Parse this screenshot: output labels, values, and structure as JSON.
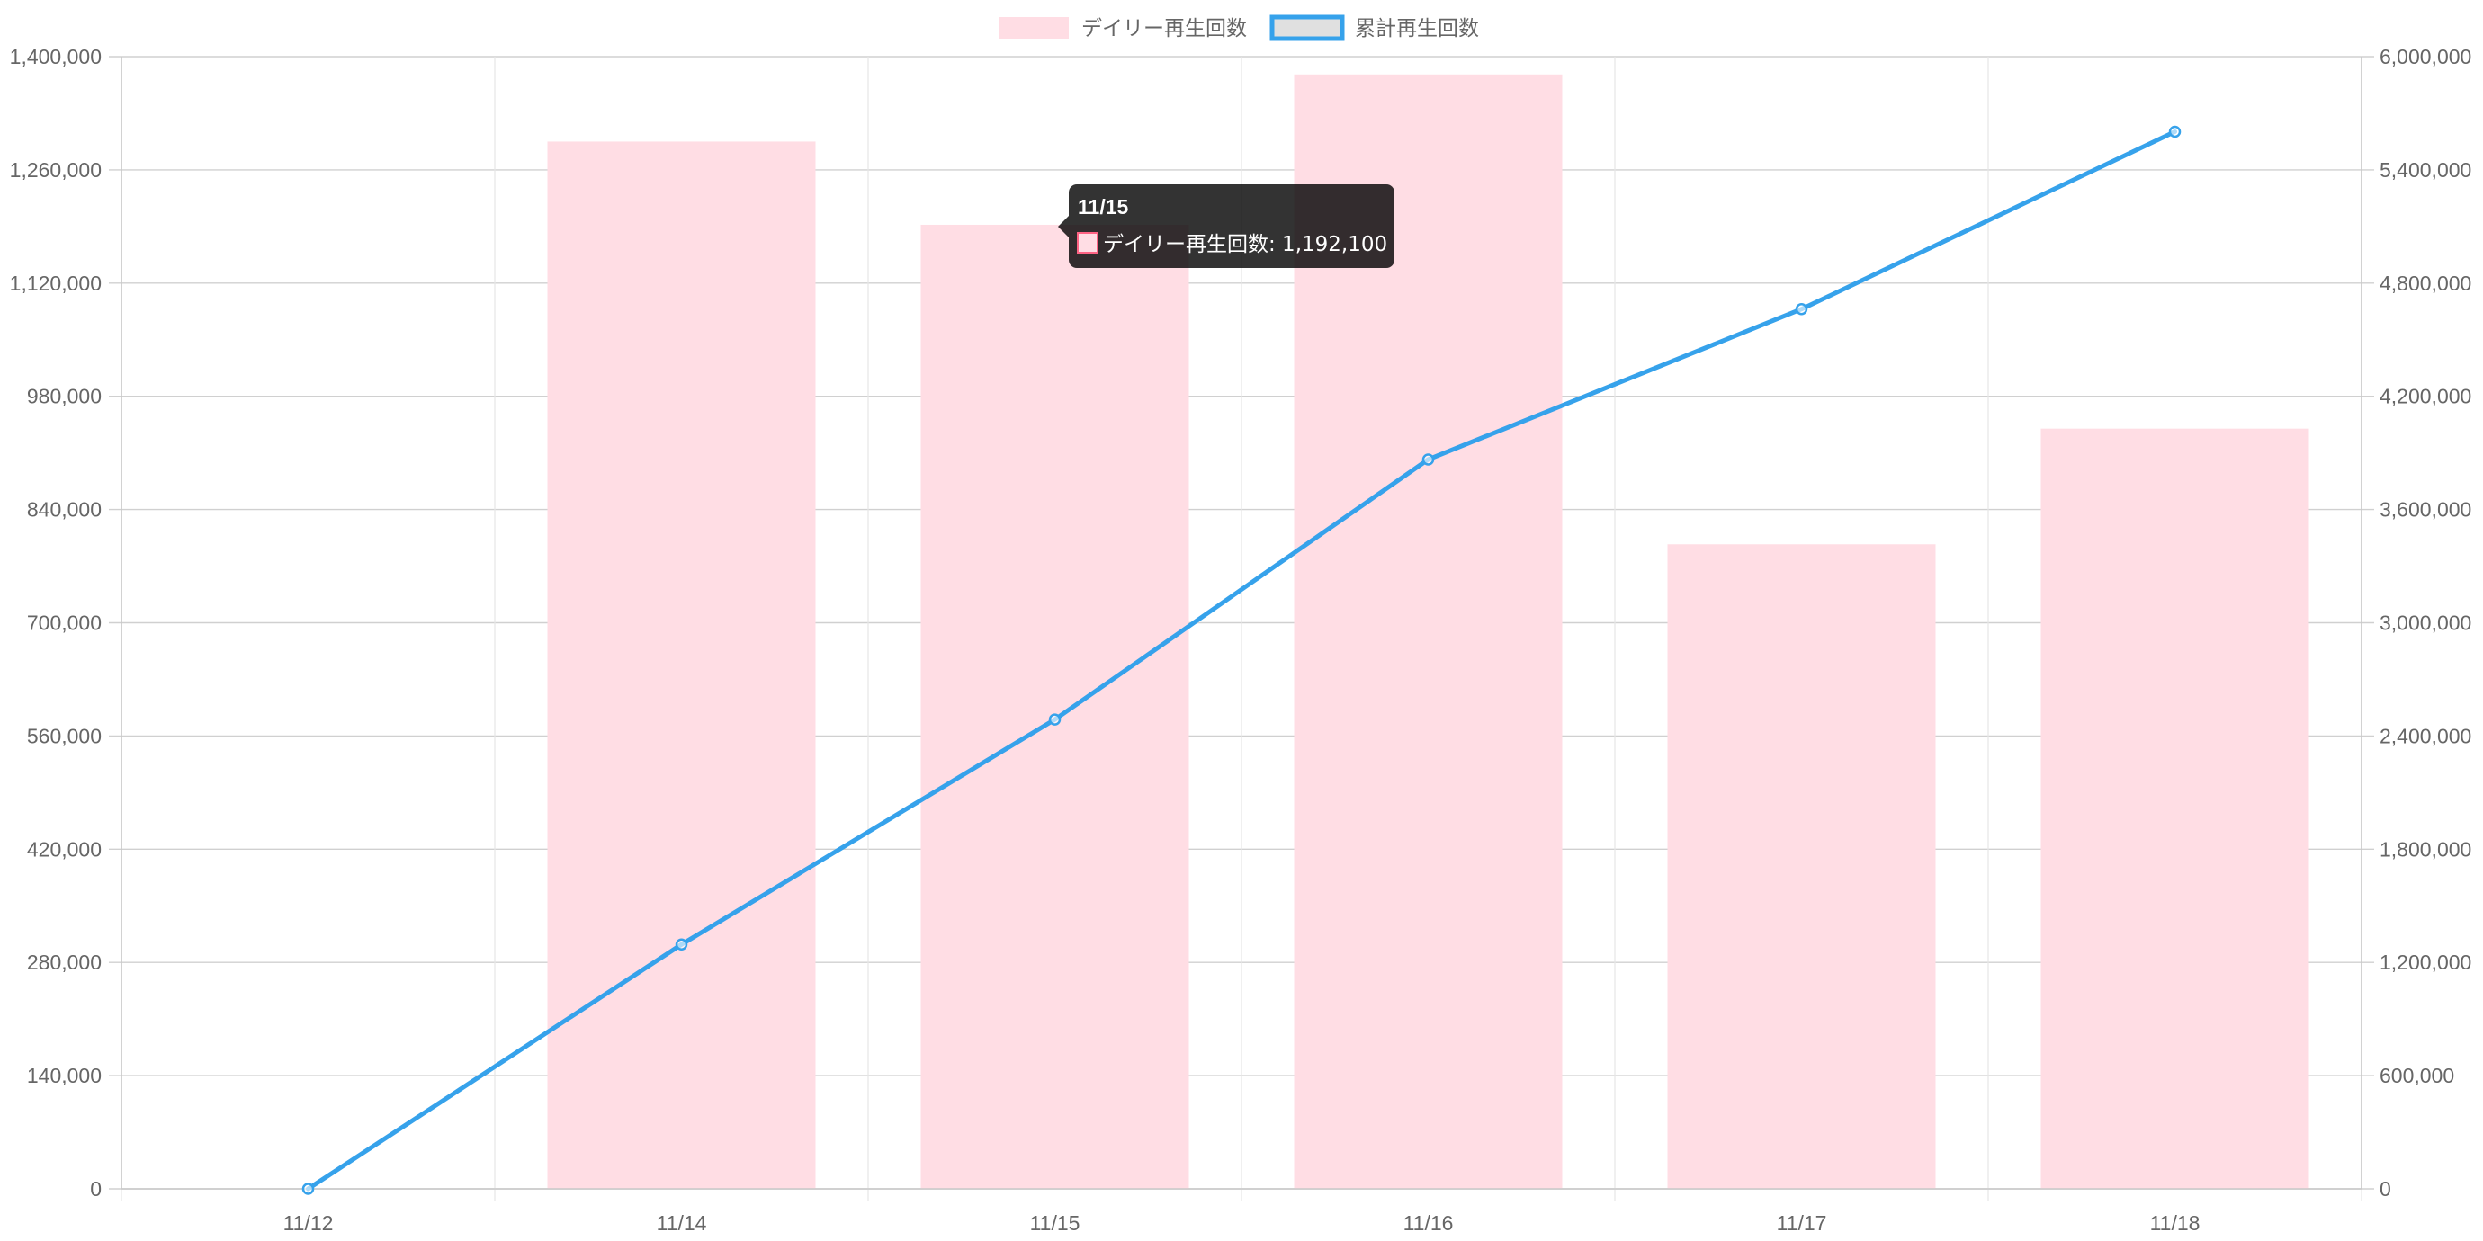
{
  "chart_data": {
    "type": "bar",
    "categories": [
      "11/12",
      "11/14",
      "11/15",
      "11/16",
      "11/17",
      "11/18"
    ],
    "series": [
      {
        "name": "デイリー再生回数",
        "type": "bar",
        "axis": "left",
        "values": [
          0,
          1295000,
          1192100,
          1378000,
          797000,
          940000
        ],
        "color": "#ffdde4",
        "border_color": "#ff6384"
      },
      {
        "name": "累計再生回数",
        "type": "line",
        "axis": "right",
        "values": [
          0,
          1295000,
          2487100,
          3865100,
          4662100,
          5602100
        ],
        "color": "#36a2eb",
        "legend_fill": "#e0e0e0"
      }
    ],
    "y_left": {
      "min": 0,
      "max": 1400000,
      "ticks": [
        0,
        140000,
        280000,
        420000,
        560000,
        700000,
        840000,
        980000,
        1120000,
        1260000,
        1400000
      ],
      "tick_labels": [
        "0",
        "140,000",
        "280,000",
        "420,000",
        "560,000",
        "700,000",
        "840,000",
        "980,000",
        "1,120,000",
        "1,260,000",
        "1,400,000"
      ]
    },
    "y_right": {
      "min": 0,
      "max": 6000000,
      "ticks": [
        0,
        600000,
        1200000,
        1800000,
        2400000,
        3000000,
        3600000,
        4200000,
        4800000,
        5400000,
        6000000
      ],
      "tick_labels": [
        "0",
        "600,000",
        "1,200,000",
        "1,800,000",
        "2,400,000",
        "3,000,000",
        "3,600,000",
        "4,200,000",
        "4,800,000",
        "5,400,000",
        "6,000,000"
      ]
    },
    "legend_position": "top",
    "grid": true,
    "tooltip": {
      "category": "11/15",
      "title": "11/15",
      "label": "デイリー再生回数: 1,192,100"
    }
  }
}
